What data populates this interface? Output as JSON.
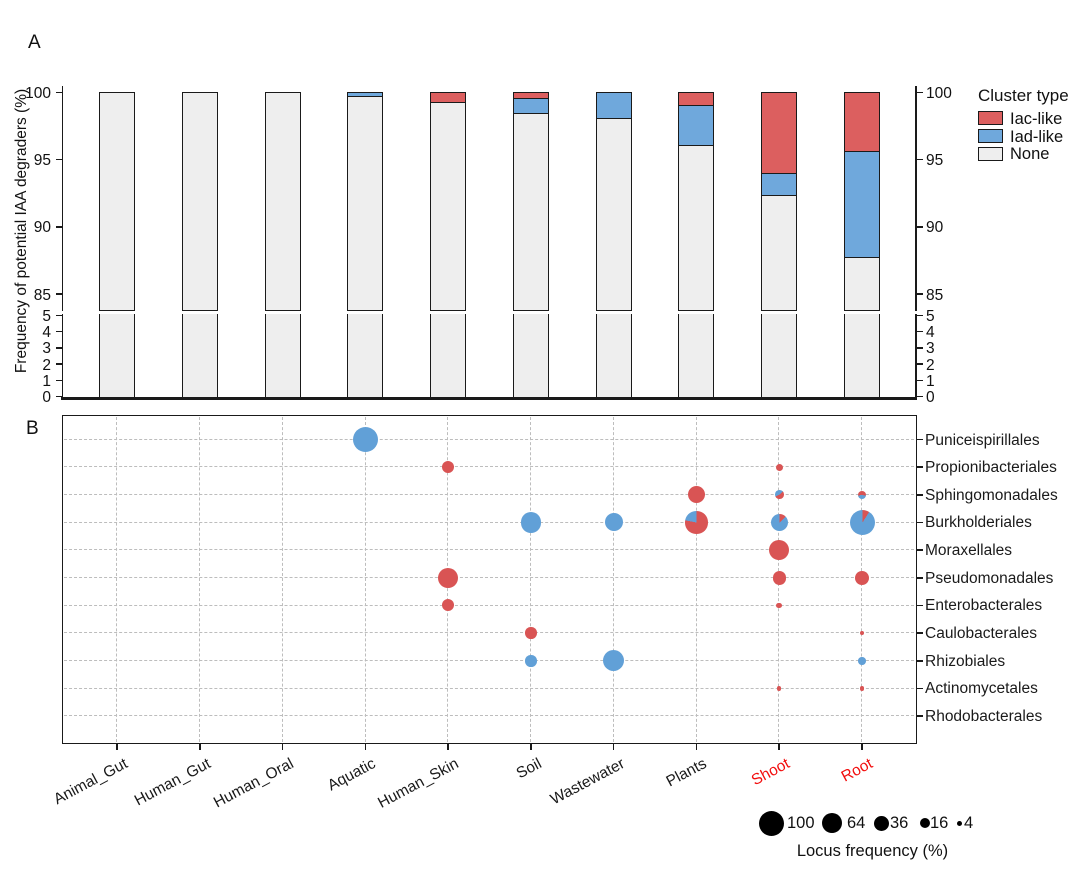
{
  "figure": {
    "panel_a_label": "A",
    "panel_b_label": "B"
  },
  "colors": {
    "iac": "#DC5F5F",
    "iad": "#6FA8DC",
    "none": "#EEEEEE",
    "red": "#D95454",
    "blue": "#61A0D7",
    "highlight_red": "#F20D0D",
    "grid": "#BDBDBD",
    "axis": "#1a1a1a"
  },
  "chart_data": [
    {
      "type": "bar",
      "panel": "A",
      "ylabel": "Frequency of potential IAA degraders (%)",
      "legend": {
        "title": "Cluster type",
        "entries": [
          {
            "label": "Iac-like",
            "color_key": "iac"
          },
          {
            "label": "Iad-like",
            "color_key": "iad"
          },
          {
            "label": "None",
            "color_key": "none"
          }
        ]
      },
      "categories": [
        "Animal_Gut",
        "Human_Gut",
        "Human_Oral",
        "Aquatic",
        "Human_Skin",
        "Soil",
        "Wastewater",
        "Plants",
        "Shoot",
        "Root"
      ],
      "series": [
        {
          "name": "Iac-like",
          "values": [
            0,
            0,
            0,
            0,
            0.8,
            0.5,
            0,
            1.0,
            6.1,
            4.4
          ]
        },
        {
          "name": "Iad-like",
          "values": [
            0,
            0,
            0,
            0.3,
            0,
            1.1,
            2.0,
            3.0,
            1.6,
            7.9
          ]
        },
        {
          "name": "None",
          "values": [
            100,
            100,
            100,
            99.7,
            99.2,
            98.4,
            98.0,
            96.0,
            92.3,
            87.7
          ]
        }
      ],
      "y_axis_upper": {
        "ticks": [
          100,
          95,
          90,
          85
        ]
      },
      "y_axis_lower": {
        "ticks": [
          5,
          4,
          3,
          2,
          1,
          0
        ]
      },
      "axis_break": true
    },
    {
      "type": "scatter",
      "panel": "B",
      "x_categories": [
        "Animal_Gut",
        "Human_Gut",
        "Human_Oral",
        "Aquatic",
        "Human_Skin",
        "Soil",
        "Wastewater",
        "Plants",
        "Shoot",
        "Root"
      ],
      "x_category_color_keys": [
        "axis",
        "axis",
        "axis",
        "axis",
        "axis",
        "axis",
        "axis",
        "axis",
        "highlight_red",
        "highlight_red"
      ],
      "y_categories": [
        "Puniceispirillales",
        "Propionibacteriales",
        "Sphingomonadales",
        "Burkholderiales",
        "Moraxellales",
        "Pseudomonadales",
        "Enterobacterales",
        "Caulobacterales",
        "Rhizobiales",
        "Actinomycetales",
        "Rhodobacterales"
      ],
      "size_legend": {
        "values": [
          100,
          64,
          36,
          16,
          4
        ],
        "label": "Locus frequency (%)"
      },
      "points": [
        {
          "env": "Aquatic",
          "order": "Puniceispirillales",
          "locus_frequency": 100,
          "color": "blue"
        },
        {
          "env": "Human_Skin",
          "order": "Propionibacteriales",
          "locus_frequency": 23,
          "color": "red"
        },
        {
          "env": "Shoot",
          "order": "Propionibacteriales",
          "locus_frequency": 8,
          "color": "red"
        },
        {
          "env": "Plants",
          "order": "Sphingomonadales",
          "locus_frequency": 46,
          "color": "red"
        },
        {
          "env": "Shoot",
          "order": "Sphingomonadales",
          "locus_frequency": 12,
          "from_deg": 45,
          "segments": [
            {
              "color": "red",
              "pct": 55
            },
            {
              "color": "blue",
              "pct": 45
            }
          ]
        },
        {
          "env": "Root",
          "order": "Sphingomonadales",
          "locus_frequency": 10,
          "from_deg": 100,
          "segments": [
            {
              "color": "blue",
              "pct": 45
            },
            {
              "color": "red",
              "pct": 55
            }
          ]
        },
        {
          "env": "Soil",
          "order": "Burkholderiales",
          "locus_frequency": 68,
          "color": "blue"
        },
        {
          "env": "Wastewater",
          "order": "Burkholderiales",
          "locus_frequency": 52,
          "color": "blue"
        },
        {
          "env": "Plants",
          "order": "Burkholderiales",
          "locus_frequency": 80,
          "from_deg": 0,
          "segments": [
            {
              "color": "red",
              "pct": 78
            },
            {
              "color": "blue",
              "pct": 22
            }
          ]
        },
        {
          "env": "Shoot",
          "order": "Burkholderiales",
          "locus_frequency": 48,
          "from_deg": 0,
          "segments": [
            {
              "color": "red",
              "pct": 13
            },
            {
              "color": "blue",
              "pct": 87
            }
          ]
        },
        {
          "env": "Root",
          "order": "Burkholderiales",
          "locus_frequency": 100,
          "from_deg": 0,
          "segments": [
            {
              "color": "red",
              "pct": 9
            },
            {
              "color": "blue",
              "pct": 91
            }
          ]
        },
        {
          "env": "Shoot",
          "order": "Moraxellales",
          "locus_frequency": 64,
          "color": "red"
        },
        {
          "env": "Human_Skin",
          "order": "Pseudomonadales",
          "locus_frequency": 64,
          "color": "red"
        },
        {
          "env": "Shoot",
          "order": "Pseudomonadales",
          "locus_frequency": 29,
          "color": "red"
        },
        {
          "env": "Root",
          "order": "Pseudomonadales",
          "locus_frequency": 31,
          "color": "red"
        },
        {
          "env": "Human_Skin",
          "order": "Enterobacterales",
          "locus_frequency": 23,
          "color": "red"
        },
        {
          "env": "Shoot",
          "order": "Enterobacterales",
          "locus_frequency": 5,
          "color": "red"
        },
        {
          "env": "Soil",
          "order": "Caulobacterales",
          "locus_frequency": 21,
          "color": "red"
        },
        {
          "env": "Root",
          "order": "Caulobacterales",
          "locus_frequency": 3,
          "color": "red"
        },
        {
          "env": "Soil",
          "order": "Rhizobiales",
          "locus_frequency": 21,
          "color": "blue"
        },
        {
          "env": "Wastewater",
          "order": "Rhizobiales",
          "locus_frequency": 73,
          "color": "blue"
        },
        {
          "env": "Root",
          "order": "Rhizobiales",
          "locus_frequency": 9,
          "color": "blue"
        },
        {
          "env": "Shoot",
          "order": "Actinomycetales",
          "locus_frequency": 3,
          "color": "red"
        },
        {
          "env": "Root",
          "order": "Actinomycetales",
          "locus_frequency": 3,
          "color": "red"
        }
      ]
    }
  ]
}
